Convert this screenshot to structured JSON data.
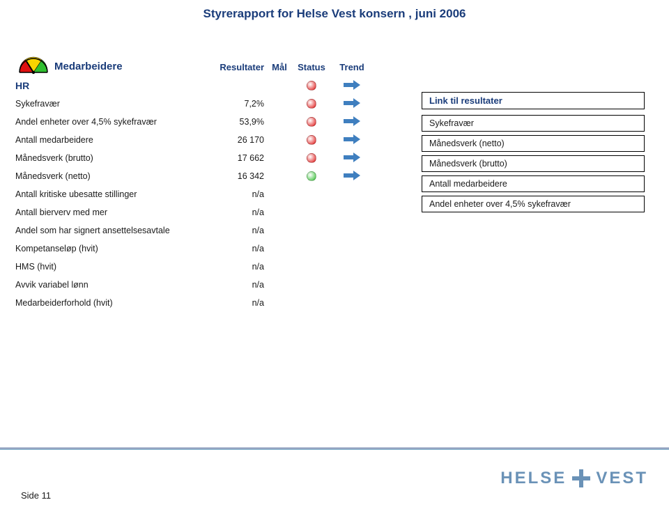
{
  "title": "Styrerapport for  Helse Vest konsern ,  juni 2006",
  "section_label": "Medarbeidere",
  "columns": {
    "resultater": "Resultater",
    "mal": "Mål",
    "status": "Status",
    "trend": "Trend"
  },
  "status_colors": {
    "red": "#e01010",
    "green": "#2fbf2f"
  },
  "trend_arrow_color": "#3f7fbf",
  "rows": [
    {
      "label": "HR",
      "value": "",
      "status": "red",
      "trend": true,
      "bold": true
    },
    {
      "label": "Sykefravær",
      "value": "7,2%",
      "status": "red",
      "trend": true
    },
    {
      "label": "Andel enheter over 4,5% sykefravær",
      "value": "53,9%",
      "status": "red",
      "trend": true
    },
    {
      "label": "Antall medarbeidere",
      "value": "26 170",
      "status": "red",
      "trend": true
    },
    {
      "label": "Månedsverk (brutto)",
      "value": "17 662",
      "status": "red",
      "trend": true
    },
    {
      "label": "Månedsverk (netto)",
      "value": "16 342",
      "status": "green",
      "trend": true
    },
    {
      "label": "Antall kritiske ubesatte stillinger",
      "value": "n/a",
      "status": null,
      "trend": false
    },
    {
      "label": "Antall bierverv med mer",
      "value": "n/a",
      "status": null,
      "trend": false
    },
    {
      "label": "Andel som har signert ansettelsesavtale",
      "value": "n/a",
      "status": null,
      "trend": false
    },
    {
      "label": "Kompetanseløp (hvit)",
      "value": "n/a",
      "status": null,
      "trend": false
    },
    {
      "label": "HMS (hvit)",
      "value": "n/a",
      "status": null,
      "trend": false
    },
    {
      "label": "Avvik variabel lønn",
      "value": "n/a",
      "status": null,
      "trend": false
    },
    {
      "label": "Medarbeiderforhold (hvit)",
      "value": "n/a",
      "status": null,
      "trend": false
    }
  ],
  "link_box": {
    "header": "Link til resultater",
    "items": [
      "Sykefravær",
      "Månedsverk (netto)",
      "Månedsverk (brutto)",
      "Antall medarbeidere",
      "Andel enheter over 4,5% sykefravær"
    ]
  },
  "logo": {
    "word1": "HELSE",
    "word2": "VEST"
  },
  "page_label": "Side",
  "page_number": "11",
  "gauge": {
    "red": "#e01010",
    "yellow": "#f7d400",
    "green": "#2fbf2f",
    "border": "#000000"
  }
}
